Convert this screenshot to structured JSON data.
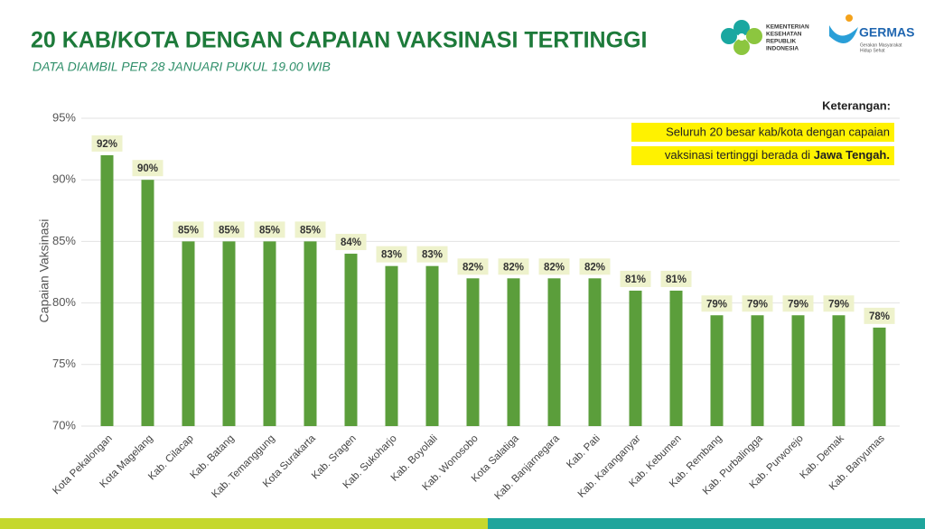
{
  "chart_data": {
    "type": "bar",
    "title": "20 KAB/KOTA DENGAN CAPAIAN VAKSINASI TERTINGGI",
    "subtitle": "DATA DIAMBIL PER 28 JANUARI PUKUL 19.00 WIB",
    "ylabel": "Capaian Vaksinasi",
    "categories": [
      "Kota Pekalongan",
      "Kota Magelang",
      "Kab. Cilacap",
      "Kab. Batang",
      "Kab. Temanggung",
      "Kota Surakarta",
      "Kab. Sragen",
      "Kab. Sukoharjo",
      "Kab. Boyolali",
      "Kab. Wonosobo",
      "Kota Salatiga",
      "Kab. Banjarnegara",
      "Kab. Pati",
      "Kab. Karanganyar",
      "Kab. Kebumen",
      "Kab. Rembang",
      "Kab. Purbalingga",
      "Kab. Purworejo",
      "Kab. Demak",
      "Kab. Banyumas"
    ],
    "values": [
      92,
      90,
      85,
      85,
      85,
      85,
      84,
      83,
      83,
      82,
      82,
      82,
      82,
      81,
      81,
      79,
      79,
      79,
      79,
      78
    ],
    "value_labels": [
      "92%",
      "90%",
      "85%",
      "85%",
      "85%",
      "85%",
      "84%",
      "83%",
      "83%",
      "82%",
      "82%",
      "82%",
      "82%",
      "81%",
      "81%",
      "79%",
      "79%",
      "79%",
      "79%",
      "78%"
    ],
    "color": "#5b9e3b",
    "ylim": [
      70,
      95
    ],
    "yticks": [
      {
        "value": 70,
        "label": "70%"
      },
      {
        "value": 75,
        "label": "75%"
      },
      {
        "value": 80,
        "label": "80%"
      },
      {
        "value": 85,
        "label": "85%"
      },
      {
        "value": 90,
        "label": "90%"
      },
      {
        "value": 95,
        "label": "95%"
      }
    ],
    "grid": true,
    "note": {
      "title": "Keterangan:",
      "line1": "Seluruh 20 besar kab/kota dengan capaian",
      "line2": "vaksinasi tertinggi berada di",
      "emphasis": "Jawa Tengah."
    }
  },
  "logos": {
    "kemenkes": [
      "KEMENTERIAN",
      "KESEHATAN",
      "REPUBLIK",
      "INDONESIA"
    ],
    "germas": "GERMAS",
    "germas_tagline": [
      "Gerakan Masyarakat",
      "Hidup Sehat"
    ]
  }
}
